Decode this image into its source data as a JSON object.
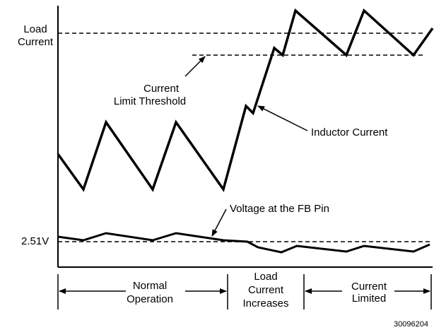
{
  "diagram": {
    "load_current": [
      "Load",
      "Current"
    ],
    "threshold": [
      "Current",
      "Limit Threshold"
    ],
    "inductor": "Inductor Current",
    "fb_voltage": "Voltage at the FB Pin",
    "fb_level": "2.51V",
    "phases": [
      [
        "Normal",
        "Operation"
      ],
      [
        "Load",
        "Current",
        "Increases"
      ],
      [
        "Current",
        "Limited"
      ]
    ],
    "figure_id": "30096204"
  }
}
